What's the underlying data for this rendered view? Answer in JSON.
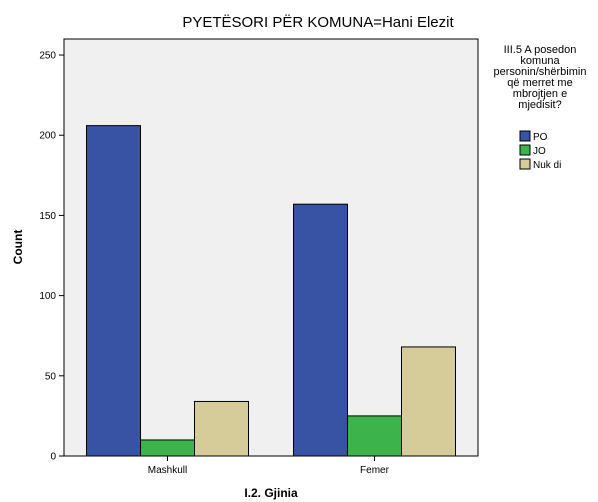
{
  "chart_data": {
    "type": "bar",
    "title": "PYETËSORI PËR KOMUNA=Hani Elezit",
    "xlabel": "I.2. Gjinia",
    "ylabel": "Count",
    "categories": [
      "Mashkull",
      "Femer"
    ],
    "ylim": [
      0,
      260
    ],
    "yticks": [
      0,
      50,
      100,
      150,
      200,
      250
    ],
    "grid": false,
    "legend": {
      "title_lines": [
        "III.5 A posedon",
        "komuna",
        "personin/shërbimin",
        "që merret me",
        "mbrojtjen e",
        "mjedisit?"
      ],
      "placement": "right"
    },
    "series": [
      {
        "name": "PO",
        "values": [
          206,
          157
        ],
        "color": "#3953a4"
      },
      {
        "name": "JO",
        "values": [
          10,
          25
        ],
        "color": "#3cb44b"
      },
      {
        "name": "Nuk di",
        "values": [
          34,
          68
        ],
        "color": "#d5cc99"
      }
    ],
    "plot_background": "#f0f0f0"
  }
}
